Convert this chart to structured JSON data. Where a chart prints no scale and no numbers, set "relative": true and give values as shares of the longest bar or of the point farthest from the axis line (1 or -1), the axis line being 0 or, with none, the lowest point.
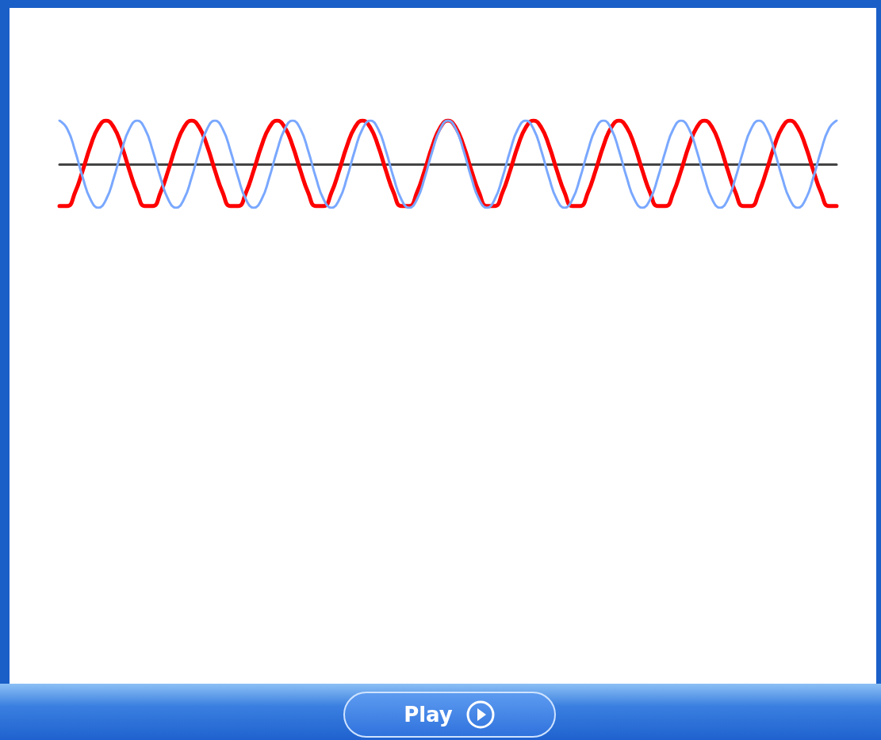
{
  "chart_data": {
    "type": "line",
    "relative": true,
    "grid": false,
    "marker": "none",
    "line_style": "solid",
    "categories": [
      null,
      null,
      null,
      null,
      null,
      null,
      null,
      null,
      null,
      null,
      null,
      null,
      null,
      null,
      null,
      null,
      null,
      null,
      null,
      null,
      null,
      null,
      null,
      null,
      null,
      null,
      null,
      null,
      null,
      null,
      null,
      null,
      null,
      null,
      null,
      null,
      null,
      null,
      null,
      null,
      null,
      null,
      null,
      null,
      null,
      null,
      null,
      null,
      null,
      null,
      null,
      null,
      null,
      null,
      null,
      null,
      null,
      null,
      null,
      null,
      null,
      null,
      null,
      null,
      null,
      null,
      null,
      null,
      null,
      null,
      null,
      null,
      null,
      null,
      null,
      null,
      null,
      null,
      null,
      null,
      null,
      null,
      null,
      null,
      null,
      null,
      null,
      null,
      null,
      null,
      null,
      null,
      null,
      null,
      null,
      null,
      null,
      null,
      null,
      null,
      null
    ],
    "series": [
      {
        "color": "#ff0000",
        "values": [
          -0.96,
          -0.96,
          -0.65,
          -0.14,
          0.42,
          0.84,
          1,
          0.84,
          0.42,
          -0.14,
          -0.65,
          -0.96,
          -0.96,
          -0.65,
          -0.14,
          0.42,
          0.84,
          1,
          0.84,
          0.42,
          -0.14,
          -0.65,
          -0.96,
          -0.96,
          -0.65,
          -0.14,
          0.42,
          0.84,
          1,
          0.84,
          0.42,
          -0.14,
          -0.65,
          -0.96,
          -0.96,
          -0.65,
          -0.14,
          0.42,
          0.84,
          1,
          0.84,
          0.42,
          -0.14,
          -0.65,
          -0.96,
          -0.96,
          -0.65,
          -0.14,
          0.42,
          0.84,
          1,
          0.84,
          0.42,
          -0.14,
          -0.65,
          -0.96,
          -0.96,
          -0.65,
          -0.14,
          0.42,
          0.84,
          1,
          0.84,
          0.42,
          -0.14,
          -0.65,
          -0.96,
          -0.96,
          -0.65,
          -0.14,
          0.42,
          0.84,
          1,
          0.84,
          0.42,
          -0.14,
          -0.65,
          -0.96,
          -0.96,
          -0.65,
          -0.14,
          0.42,
          0.84,
          1,
          0.84,
          0.42,
          -0.14,
          -0.65,
          -0.96,
          -0.96,
          -0.65,
          -0.14,
          0.42,
          0.84,
          1,
          0.84,
          0.42,
          -0.14,
          -0.65,
          -0.96,
          -0.96
        ]
      },
      {
        "color": "#7aa8ff",
        "values": [
          1,
          0.81,
          0.31,
          -0.31,
          -0.81,
          -1,
          -0.81,
          -0.31,
          0.31,
          0.81,
          1,
          0.81,
          0.31,
          -0.31,
          -0.81,
          -1,
          -0.81,
          -0.31,
          0.31,
          0.81,
          1,
          0.81,
          0.31,
          -0.31,
          -0.81,
          -1,
          -0.81,
          -0.31,
          0.31,
          0.81,
          1,
          0.81,
          0.31,
          -0.31,
          -0.81,
          -1,
          -0.81,
          -0.31,
          0.31,
          0.81,
          1,
          0.81,
          0.31,
          -0.31,
          -0.81,
          -1,
          -0.81,
          -0.31,
          0.31,
          0.81,
          1,
          0.81,
          0.31,
          -0.31,
          -0.81,
          -1,
          -0.81,
          -0.31,
          0.31,
          0.81,
          1,
          0.81,
          0.31,
          -0.31,
          -0.81,
          -1,
          -0.81,
          -0.31,
          0.31,
          0.81,
          1,
          0.81,
          0.31,
          -0.31,
          -0.81,
          -1,
          -0.81,
          -0.31,
          0.31,
          0.81,
          1,
          0.81,
          0.31,
          -0.31,
          -0.81,
          -1,
          -0.81,
          -0.31,
          0.31,
          0.81,
          1,
          0.81,
          0.31,
          -0.31,
          -0.81,
          -1,
          -0.81,
          -0.31,
          0.31,
          0.81,
          1
        ]
      }
    ],
    "annotations": [
      "Play"
    ]
  }
}
